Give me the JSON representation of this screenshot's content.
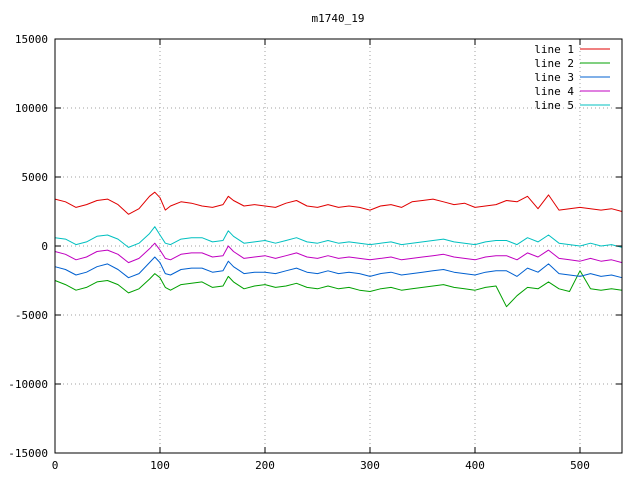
{
  "chart_data": {
    "type": "line",
    "title": "m1740_19",
    "xlabel": "",
    "ylabel": "",
    "xlim": [
      0,
      540
    ],
    "ylim": [
      -15000,
      15000
    ],
    "xticks": [
      0,
      100,
      200,
      300,
      400,
      500
    ],
    "yticks": [
      -15000,
      -10000,
      -5000,
      0,
      5000,
      10000,
      15000
    ],
    "grid": true,
    "legend": "top-right",
    "x": [
      0,
      10,
      20,
      30,
      40,
      50,
      60,
      70,
      80,
      90,
      95,
      100,
      105,
      110,
      120,
      130,
      140,
      150,
      160,
      165,
      170,
      180,
      190,
      200,
      210,
      220,
      230,
      240,
      250,
      260,
      270,
      280,
      290,
      300,
      310,
      320,
      330,
      340,
      350,
      360,
      370,
      380,
      390,
      400,
      410,
      420,
      430,
      440,
      450,
      460,
      470,
      480,
      490,
      500,
      510,
      520,
      530,
      540
    ],
    "series": [
      {
        "name": "line 1",
        "color": "#e00000",
        "values": [
          3400,
          3200,
          2800,
          3000,
          3300,
          3400,
          3000,
          2300,
          2700,
          3600,
          3900,
          3500,
          2600,
          2900,
          3200,
          3100,
          2900,
          2800,
          3000,
          3600,
          3300,
          2900,
          3000,
          2900,
          2800,
          3100,
          3300,
          2900,
          2800,
          3000,
          2800,
          2900,
          2800,
          2600,
          2900,
          3000,
          2800,
          3200,
          3300,
          3400,
          3200,
          3000,
          3100,
          2800,
          2900,
          3000,
          3300,
          3200,
          3600,
          2700,
          3700,
          2600,
          2700,
          2800,
          2700,
          2600,
          2700,
          2500
        ]
      },
      {
        "name": "line 2",
        "color": "#00a000",
        "values": [
          -2500,
          -2800,
          -3200,
          -3000,
          -2600,
          -2500,
          -2800,
          -3400,
          -3100,
          -2400,
          -2000,
          -2300,
          -3000,
          -3200,
          -2800,
          -2700,
          -2600,
          -3000,
          -2900,
          -2200,
          -2600,
          -3100,
          -2900,
          -2800,
          -3000,
          -2900,
          -2700,
          -3000,
          -3100,
          -2900,
          -3100,
          -3000,
          -3200,
          -3300,
          -3100,
          -3000,
          -3200,
          -3100,
          -3000,
          -2900,
          -2800,
          -3000,
          -3100,
          -3200,
          -3000,
          -2900,
          -4400,
          -3600,
          -3000,
          -3100,
          -2600,
          -3100,
          -3300,
          -1800,
          -3100,
          -3200,
          -3100,
          -3200
        ]
      },
      {
        "name": "line 3",
        "color": "#0060d0",
        "values": [
          -1500,
          -1700,
          -2100,
          -1900,
          -1500,
          -1300,
          -1700,
          -2300,
          -2000,
          -1200,
          -800,
          -1200,
          -2000,
          -2100,
          -1700,
          -1600,
          -1600,
          -1900,
          -1800,
          -1100,
          -1500,
          -2000,
          -1900,
          -1900,
          -2000,
          -1800,
          -1600,
          -1900,
          -2000,
          -1800,
          -2000,
          -1900,
          -2000,
          -2200,
          -2000,
          -1900,
          -2100,
          -2000,
          -1900,
          -1800,
          -1700,
          -1900,
          -2000,
          -2100,
          -1900,
          -1800,
          -1800,
          -2200,
          -1600,
          -1900,
          -1300,
          -2000,
          -2100,
          -2200,
          -2000,
          -2200,
          -2100,
          -2300
        ]
      },
      {
        "name": "line 4",
        "color": "#c000c0",
        "values": [
          -400,
          -600,
          -1000,
          -800,
          -400,
          -300,
          -600,
          -1200,
          -900,
          -200,
          200,
          -300,
          -900,
          -1000,
          -600,
          -500,
          -500,
          -800,
          -700,
          0,
          -400,
          -900,
          -800,
          -700,
          -900,
          -700,
          -500,
          -800,
          -900,
          -700,
          -900,
          -800,
          -900,
          -1000,
          -900,
          -800,
          -1000,
          -900,
          -800,
          -700,
          -600,
          -800,
          -900,
          -1000,
          -800,
          -700,
          -700,
          -1000,
          -500,
          -800,
          -300,
          -900,
          -1000,
          -1100,
          -900,
          -1100,
          -1000,
          -1200
        ]
      },
      {
        "name": "line 5",
        "color": "#00c0c0",
        "values": [
          600,
          500,
          100,
          300,
          700,
          800,
          500,
          -100,
          200,
          900,
          1400,
          800,
          200,
          100,
          500,
          600,
          600,
          300,
          400,
          1100,
          700,
          200,
          300,
          400,
          200,
          400,
          600,
          300,
          200,
          400,
          200,
          300,
          200,
          100,
          200,
          300,
          100,
          200,
          300,
          400,
          500,
          300,
          200,
          100,
          300,
          400,
          400,
          100,
          600,
          300,
          800,
          200,
          100,
          0,
          200,
          0,
          100,
          -100
        ]
      }
    ]
  }
}
